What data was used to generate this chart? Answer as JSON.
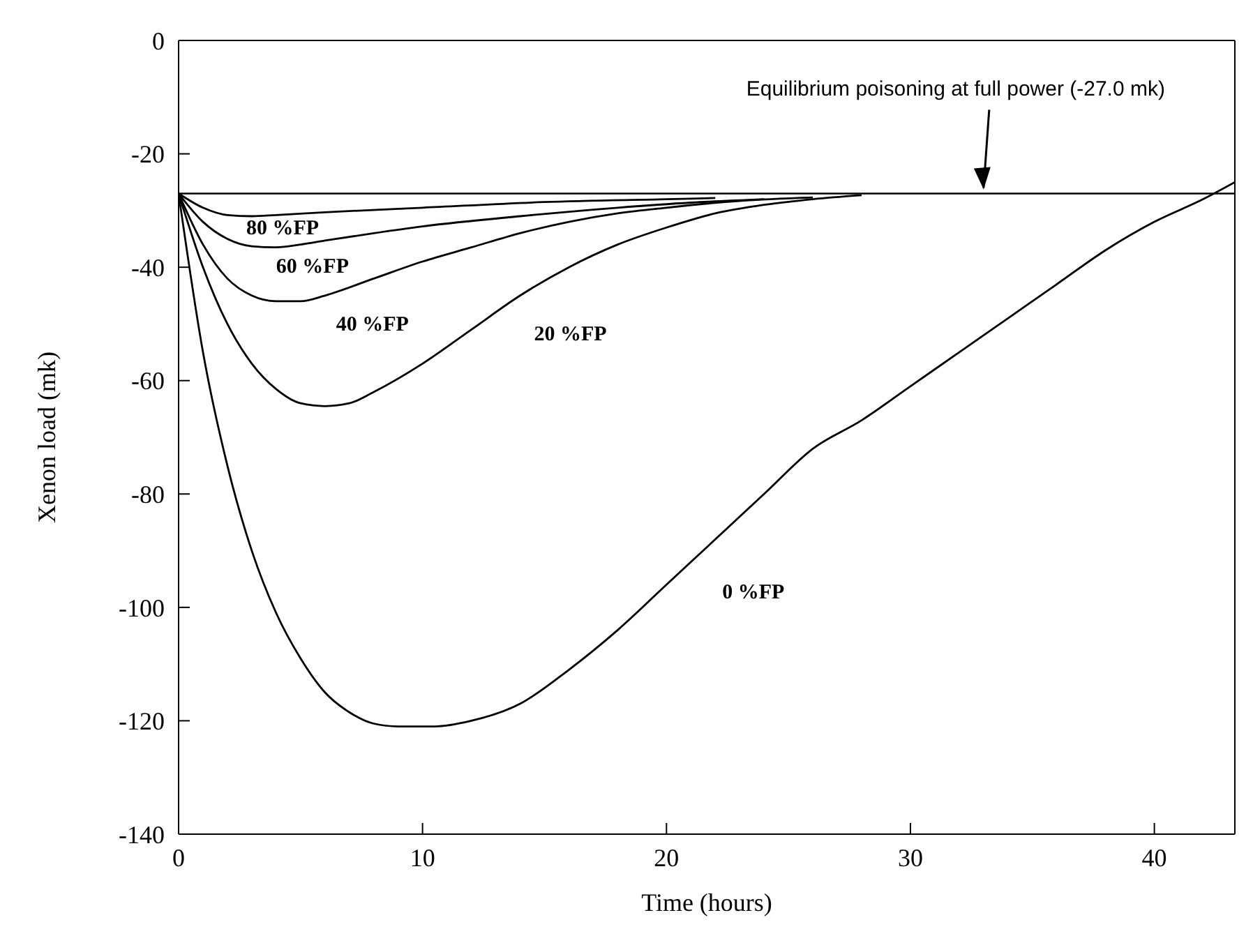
{
  "chart_data": {
    "type": "line",
    "xlabel": "Time (hours)",
    "ylabel": "Xenon load (mk)",
    "xlim": [
      0,
      43.3
    ],
    "xticks": [
      0,
      10,
      20,
      30,
      40
    ],
    "ylim": [
      -140,
      0
    ],
    "yticks": [
      0,
      -20,
      -40,
      -60,
      -80,
      -100,
      -120,
      -140
    ],
    "grid": false,
    "legend": false,
    "marker": "none",
    "line_style": "solid",
    "series": [
      {
        "name": "0 %FP",
        "color": "#000000",
        "x": [
          0,
          1,
          2,
          3,
          4,
          5,
          6,
          7,
          8,
          9,
          10.5,
          12,
          14,
          16,
          18,
          20,
          22,
          24,
          26,
          28,
          30,
          32,
          34,
          36,
          38,
          40,
          42,
          43.3
        ],
        "values": [
          -27,
          -55,
          -75,
          -90,
          -101,
          -109,
          -115,
          -118.5,
          -120.5,
          -121,
          -121,
          -120,
          -117,
          -111,
          -104,
          -96,
          -88,
          -80,
          -72,
          -67,
          -61,
          -55,
          -49,
          -43,
          -37,
          -32,
          -28,
          -25
        ]
      },
      {
        "name": "20 %FP",
        "color": "#000000",
        "x": [
          0,
          1,
          2,
          3,
          4,
          5,
          6,
          7,
          8,
          10,
          12,
          14,
          16,
          18,
          20,
          22,
          24,
          26,
          28
        ],
        "values": [
          -27,
          -40,
          -50,
          -57,
          -61.5,
          -64,
          -64.5,
          -64,
          -62,
          -57,
          -51,
          -45,
          -40,
          -36,
          -33,
          -30.5,
          -29,
          -28,
          -27.3
        ]
      },
      {
        "name": "40 %FP",
        "color": "#000000",
        "x": [
          0,
          1,
          2,
          3,
          4,
          5,
          6,
          8,
          10,
          12,
          14,
          16,
          18,
          20,
          23,
          26
        ],
        "values": [
          -27,
          -36,
          -42,
          -45,
          -46,
          -46,
          -45,
          -42,
          -39,
          -36.5,
          -34,
          -32,
          -30.5,
          -29.5,
          -28.3,
          -27.7
        ]
      },
      {
        "name": "60 %FP",
        "color": "#000000",
        "x": [
          0,
          1,
          2,
          3,
          4,
          5,
          6,
          8,
          10,
          14,
          18,
          21,
          24
        ],
        "values": [
          -27,
          -32,
          -35,
          -36.3,
          -36.5,
          -36,
          -35.3,
          -34,
          -32.8,
          -31,
          -29.5,
          -28.6,
          -28
        ]
      },
      {
        "name": "80 %FP",
        "color": "#000000",
        "x": [
          0,
          1,
          2,
          3,
          4,
          6,
          10,
          15,
          20,
          22
        ],
        "values": [
          -27,
          -29.5,
          -30.8,
          -31,
          -30.8,
          -30.3,
          -29.5,
          -28.5,
          -28,
          -27.8
        ]
      }
    ],
    "ref_lines": [
      {
        "axis": "y",
        "value": -27,
        "color": "#000000"
      }
    ],
    "annotations": [
      {
        "text": "Equilibrium poisoning at full power (-27.0 mk)",
        "x": 33,
        "y": -27
      }
    ]
  }
}
